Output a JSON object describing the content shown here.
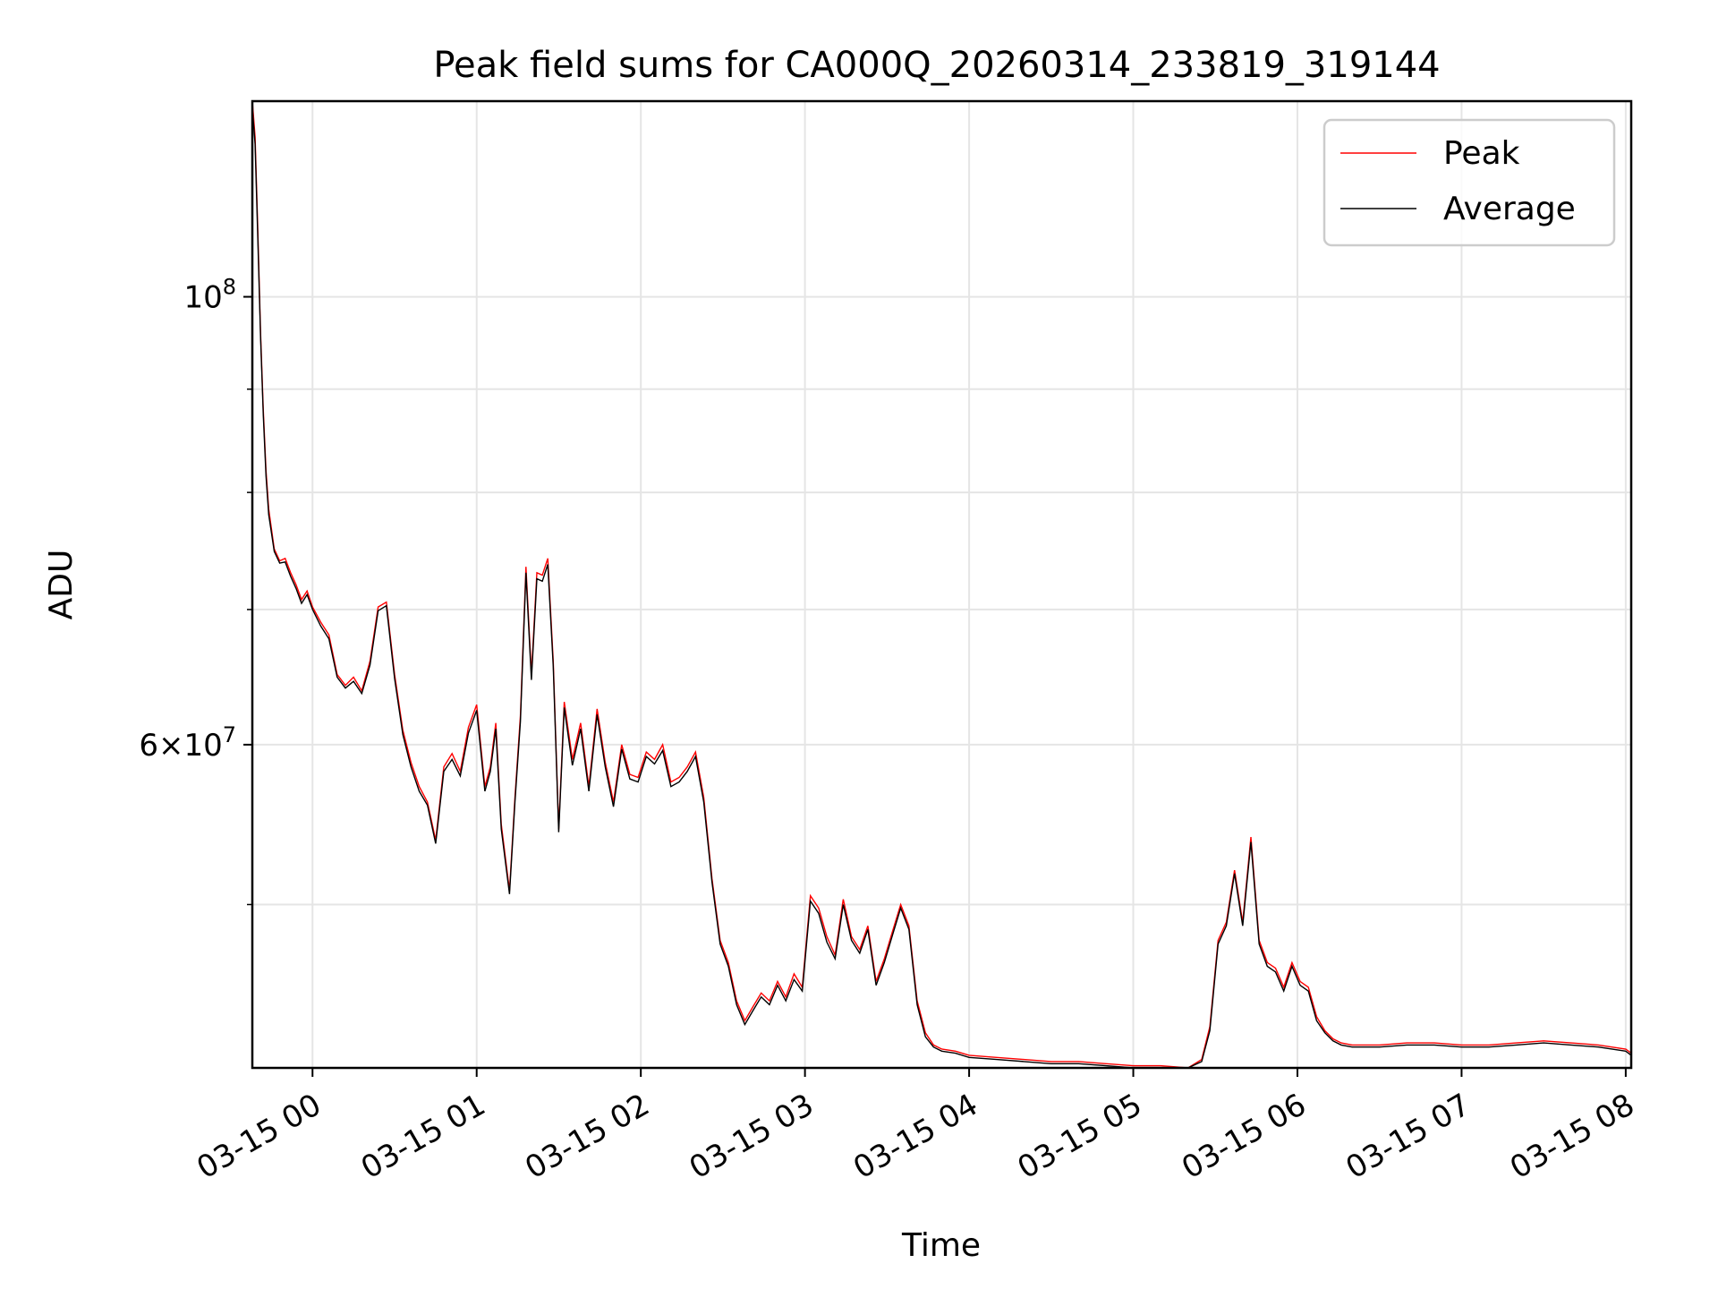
{
  "chart_data": {
    "type": "line",
    "title": "Peak field sums for CA000Q_20260314_233819_319144",
    "xlabel": "Time",
    "ylabel": "ADU",
    "yscale": "log",
    "grid": true,
    "legend_position": "top-right",
    "x_range": [
      "03-14 23:38",
      "03-15 08:02"
    ],
    "ylim": [
      41500000,
      125000000
    ],
    "x_ticks": [
      "03-15 00",
      "03-15 01",
      "03-15 02",
      "03-15 03",
      "03-15 04",
      "03-15 05",
      "03-15 06",
      "03-15 07",
      "03-15 08"
    ],
    "y_major_ticks": [
      {
        "value": 100000000,
        "base": "10",
        "exp": "8"
      },
      {
        "value": 60000000,
        "mant": "6",
        "base": "10",
        "exp": "7"
      }
    ],
    "y_minor_ticks": [
      50000000,
      70000000,
      80000000,
      90000000
    ],
    "series": [
      {
        "name": "Peak",
        "color": "#ff0000",
        "time": [
          "03-14 23:38",
          "03-14 23:39",
          "03-14 23:40",
          "03-14 23:41",
          "03-14 23:42",
          "03-14 23:43",
          "03-14 23:44",
          "03-14 23:46",
          "03-14 23:48",
          "03-14 23:50",
          "03-14 23:52",
          "03-14 23:54",
          "03-14 23:56",
          "03-14 23:58",
          "03-15 00:00",
          "03-15 00:03",
          "03-15 00:06",
          "03-15 00:09",
          "03-15 00:12",
          "03-15 00:15",
          "03-15 00:18",
          "03-15 00:21",
          "03-15 00:24",
          "03-15 00:27",
          "03-15 00:30",
          "03-15 00:33",
          "03-15 00:36",
          "03-15 00:39",
          "03-15 00:42",
          "03-15 00:45",
          "03-15 00:48",
          "03-15 00:51",
          "03-15 00:54",
          "03-15 00:57",
          "03-15 01:00",
          "03-15 01:03",
          "03-15 01:05",
          "03-15 01:07",
          "03-15 01:09",
          "03-15 01:12",
          "03-15 01:14",
          "03-15 01:16",
          "03-15 01:18",
          "03-15 01:20",
          "03-15 01:22",
          "03-15 01:24",
          "03-15 01:26",
          "03-15 01:28",
          "03-15 01:30",
          "03-15 01:32",
          "03-15 01:35",
          "03-15 01:38",
          "03-15 01:41",
          "03-15 01:44",
          "03-15 01:47",
          "03-15 01:50",
          "03-15 01:53",
          "03-15 01:56",
          "03-15 01:59",
          "03-15 02:02",
          "03-15 02:05",
          "03-15 02:08",
          "03-15 02:11",
          "03-15 02:14",
          "03-15 02:17",
          "03-15 02:20",
          "03-15 02:23",
          "03-15 02:26",
          "03-15 02:29",
          "03-15 02:32",
          "03-15 02:35",
          "03-15 02:38",
          "03-15 02:41",
          "03-15 02:44",
          "03-15 02:47",
          "03-15 02:50",
          "03-15 02:53",
          "03-15 02:56",
          "03-15 02:59",
          "03-15 03:02",
          "03-15 03:05",
          "03-15 03:08",
          "03-15 03:11",
          "03-15 03:14",
          "03-15 03:17",
          "03-15 03:20",
          "03-15 03:23",
          "03-15 03:26",
          "03-15 03:29",
          "03-15 03:32",
          "03-15 03:35",
          "03-15 03:38",
          "03-15 03:41",
          "03-15 03:44",
          "03-15 03:47",
          "03-15 03:50",
          "03-15 03:55",
          "03-15 04:00",
          "03-15 04:10",
          "03-15 04:20",
          "03-15 04:30",
          "03-15 04:40",
          "03-15 04:50",
          "03-15 05:00",
          "03-15 05:10",
          "03-15 05:20",
          "03-15 05:25",
          "03-15 05:28",
          "03-15 05:31",
          "03-15 05:34",
          "03-15 05:37",
          "03-15 05:40",
          "03-15 05:43",
          "03-15 05:46",
          "03-15 05:49",
          "03-15 05:52",
          "03-15 05:55",
          "03-15 05:58",
          "03-15 06:01",
          "03-15 06:04",
          "03-15 06:07",
          "03-15 06:10",
          "03-15 06:13",
          "03-15 06:16",
          "03-15 06:20",
          "03-15 06:30",
          "03-15 06:40",
          "03-15 06:50",
          "03-15 07:00",
          "03-15 07:10",
          "03-15 07:20",
          "03-15 07:30",
          "03-15 07:40",
          "03-15 07:50",
          "03-15 08:00",
          "03-15 08:02"
        ],
        "values": [
          125000000,
          120000000,
          108000000,
          96000000,
          88000000,
          82000000,
          78500000,
          75000000,
          74000000,
          74200000,
          73000000,
          72000000,
          70800000,
          71500000,
          70200000,
          69000000,
          68000000,
          65000000,
          64200000,
          64800000,
          63800000,
          66000000,
          70200000,
          70600000,
          65000000,
          61000000,
          58800000,
          57200000,
          56200000,
          53800000,
          58500000,
          59400000,
          58200000,
          61200000,
          62800000,
          57200000,
          58500000,
          61500000,
          54800000,
          50800000,
          56500000,
          62000000,
          73500000,
          65000000,
          73000000,
          72800000,
          74200000,
          66000000,
          54500000,
          63000000,
          59000000,
          61500000,
          57200000,
          62500000,
          58800000,
          56200000,
          60000000,
          58000000,
          57800000,
          59500000,
          59000000,
          60000000,
          57500000,
          57800000,
          58500000,
          59500000,
          56500000,
          51500000,
          48000000,
          46800000,
          44800000,
          43800000,
          44500000,
          45200000,
          44800000,
          45800000,
          45000000,
          46200000,
          45500000,
          50500000,
          49800000,
          48200000,
          47200000,
          50300000,
          48200000,
          47500000,
          48800000,
          45800000,
          47000000,
          48500000,
          50000000,
          48800000,
          44800000,
          43200000,
          42600000,
          42400000,
          42300000,
          42100000,
          42000000,
          41900000,
          41800000,
          41800000,
          41700000,
          41600000,
          41600000,
          41500000,
          41900000,
          43500000,
          48000000,
          49000000,
          52000000,
          49000000,
          54000000,
          48000000,
          46800000,
          46500000,
          45500000,
          46800000,
          45800000,
          45500000,
          44000000,
          43300000,
          42900000,
          42700000,
          42600000,
          42600000,
          42700000,
          42700000,
          42600000,
          42600000,
          42700000,
          42800000,
          42700000,
          42600000,
          42400000,
          42200000
        ]
      },
      {
        "name": "Average",
        "color": "#000000",
        "time": [
          "03-14 23:38",
          "03-14 23:39",
          "03-14 23:40",
          "03-14 23:41",
          "03-14 23:42",
          "03-14 23:43",
          "03-14 23:44",
          "03-14 23:46",
          "03-14 23:48",
          "03-14 23:50",
          "03-14 23:52",
          "03-14 23:54",
          "03-14 23:56",
          "03-14 23:58",
          "03-15 00:00",
          "03-15 00:03",
          "03-15 00:06",
          "03-15 00:09",
          "03-15 00:12",
          "03-15 00:15",
          "03-15 00:18",
          "03-15 00:21",
          "03-15 00:24",
          "03-15 00:27",
          "03-15 00:30",
          "03-15 00:33",
          "03-15 00:36",
          "03-15 00:39",
          "03-15 00:42",
          "03-15 00:45",
          "03-15 00:48",
          "03-15 00:51",
          "03-15 00:54",
          "03-15 00:57",
          "03-15 01:00",
          "03-15 01:03",
          "03-15 01:05",
          "03-15 01:07",
          "03-15 01:09",
          "03-15 01:12",
          "03-15 01:14",
          "03-15 01:16",
          "03-15 01:18",
          "03-15 01:20",
          "03-15 01:22",
          "03-15 01:24",
          "03-15 01:26",
          "03-15 01:28",
          "03-15 01:30",
          "03-15 01:32",
          "03-15 01:35",
          "03-15 01:38",
          "03-15 01:41",
          "03-15 01:44",
          "03-15 01:47",
          "03-15 01:50",
          "03-15 01:53",
          "03-15 01:56",
          "03-15 01:59",
          "03-15 02:02",
          "03-15 02:05",
          "03-15 02:08",
          "03-15 02:11",
          "03-15 02:14",
          "03-15 02:17",
          "03-15 02:20",
          "03-15 02:23",
          "03-15 02:26",
          "03-15 02:29",
          "03-15 02:32",
          "03-15 02:35",
          "03-15 02:38",
          "03-15 02:41",
          "03-15 02:44",
          "03-15 02:47",
          "03-15 02:50",
          "03-15 02:53",
          "03-15 02:56",
          "03-15 02:59",
          "03-15 03:02",
          "03-15 03:05",
          "03-15 03:08",
          "03-15 03:11",
          "03-15 03:14",
          "03-15 03:17",
          "03-15 03:20",
          "03-15 03:23",
          "03-15 03:26",
          "03-15 03:29",
          "03-15 03:32",
          "03-15 03:35",
          "03-15 03:38",
          "03-15 03:41",
          "03-15 03:44",
          "03-15 03:47",
          "03-15 03:50",
          "03-15 03:55",
          "03-15 04:00",
          "03-15 04:10",
          "03-15 04:20",
          "03-15 04:30",
          "03-15 04:40",
          "03-15 04:50",
          "03-15 05:00",
          "03-15 05:10",
          "03-15 05:20",
          "03-15 05:25",
          "03-15 05:28",
          "03-15 05:31",
          "03-15 05:34",
          "03-15 05:37",
          "03-15 05:40",
          "03-15 05:43",
          "03-15 05:46",
          "03-15 05:49",
          "03-15 05:52",
          "03-15 05:55",
          "03-15 05:58",
          "03-15 06:01",
          "03-15 06:04",
          "03-15 06:07",
          "03-15 06:10",
          "03-15 06:13",
          "03-15 06:16",
          "03-15 06:20",
          "03-15 06:30",
          "03-15 06:40",
          "03-15 06:50",
          "03-15 07:00",
          "03-15 07:10",
          "03-15 07:20",
          "03-15 07:30",
          "03-15 07:40",
          "03-15 07:50",
          "03-15 08:00",
          "03-15 08:02"
        ],
        "values": [
          124000000,
          119000000,
          107000000,
          95500000,
          87500000,
          81500000,
          78000000,
          74800000,
          73800000,
          73900000,
          72700000,
          71700000,
          70500000,
          71200000,
          70000000,
          68700000,
          67700000,
          64800000,
          64000000,
          64500000,
          63600000,
          65700000,
          69900000,
          70300000,
          64700000,
          60700000,
          58500000,
          56900000,
          56000000,
          53600000,
          58200000,
          59000000,
          57900000,
          60800000,
          62400000,
          56900000,
          58200000,
          61100000,
          54500000,
          50600000,
          56200000,
          61600000,
          73000000,
          64600000,
          72500000,
          72300000,
          73700000,
          65600000,
          54300000,
          62600000,
          58600000,
          61100000,
          56900000,
          62100000,
          58500000,
          55900000,
          59700000,
          57700000,
          57500000,
          59200000,
          58700000,
          59600000,
          57200000,
          57500000,
          58200000,
          59200000,
          56200000,
          51300000,
          47800000,
          46600000,
          44600000,
          43600000,
          44300000,
          45000000,
          44600000,
          45600000,
          44800000,
          45900000,
          45300000,
          50200000,
          49500000,
          47900000,
          47000000,
          50000000,
          48000000,
          47300000,
          48600000,
          45600000,
          46800000,
          48300000,
          49800000,
          48600000,
          44600000,
          43000000,
          42500000,
          42300000,
          42200000,
          42000000,
          41900000,
          41800000,
          41700000,
          41700000,
          41600000,
          41500000,
          41500000,
          41400000,
          41800000,
          43300000,
          47800000,
          48800000,
          51800000,
          48800000,
          53700000,
          47800000,
          46600000,
          46300000,
          45300000,
          46600000,
          45600000,
          45300000,
          43800000,
          43200000,
          42800000,
          42600000,
          42500000,
          42500000,
          42600000,
          42600000,
          42500000,
          42500000,
          42600000,
          42700000,
          42600000,
          42500000,
          42300000,
          42100000
        ]
      }
    ]
  }
}
